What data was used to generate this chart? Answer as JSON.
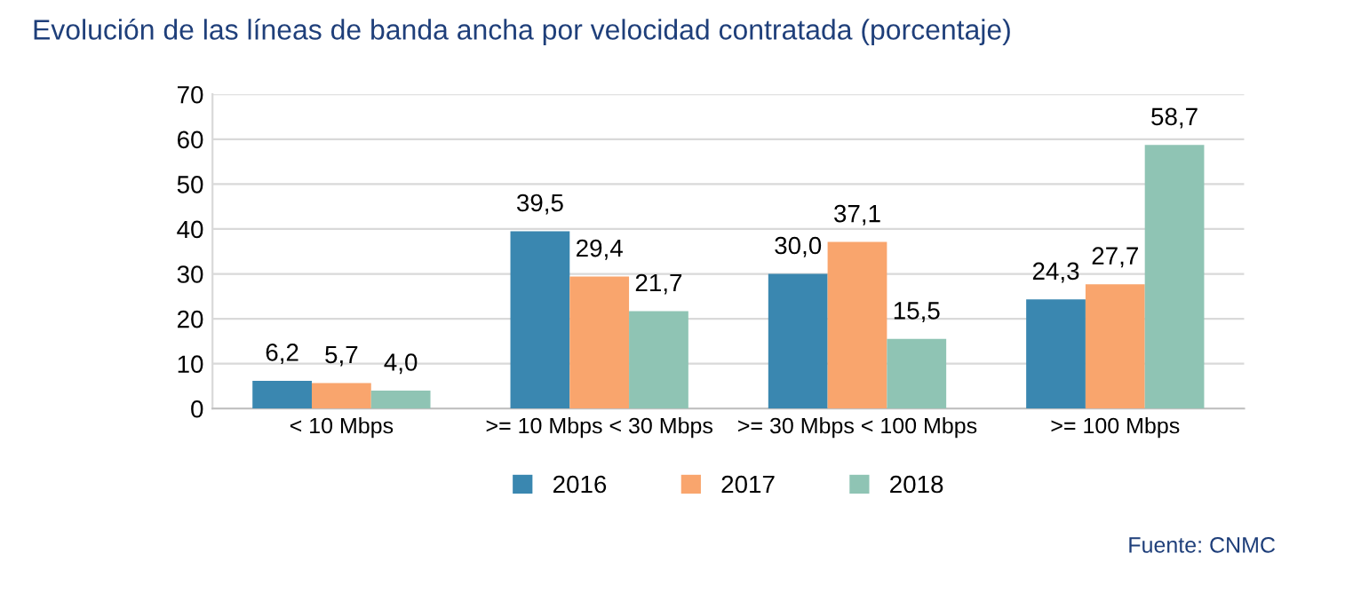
{
  "chart_data": {
    "type": "bar",
    "title": "Evolución de las líneas de banda ancha por velocidad contratada (porcentaje)",
    "categories": [
      "< 10 Mbps",
      ">= 10 Mbps < 30 Mbps",
      ">= 30 Mbps < 100 Mbps",
      ">= 100 Mbps"
    ],
    "series": [
      {
        "name": "2016",
        "color": "#3a87b0",
        "values": [
          6.2,
          39.5,
          30.0,
          24.3
        ],
        "value_labels": [
          "6,2",
          "39,5",
          "30,0",
          "24,3"
        ]
      },
      {
        "name": "2017",
        "color": "#f9a56d",
        "values": [
          5.7,
          29.4,
          37.1,
          27.7
        ],
        "value_labels": [
          "5,7",
          "29,4",
          "37,1",
          "27,7"
        ]
      },
      {
        "name": "2018",
        "color": "#8fc4b4",
        "values": [
          4.0,
          21.7,
          15.5,
          58.7
        ],
        "value_labels": [
          "4,0",
          "21,7",
          "15,5",
          "58,7"
        ]
      }
    ],
    "ylim": [
      0,
      70
    ],
    "yticks": [
      0,
      10,
      20,
      30,
      40,
      50,
      60,
      70
    ],
    "grid": "y",
    "legend": "bottom",
    "annotations": [
      "Fuente: CNMC"
    ]
  }
}
